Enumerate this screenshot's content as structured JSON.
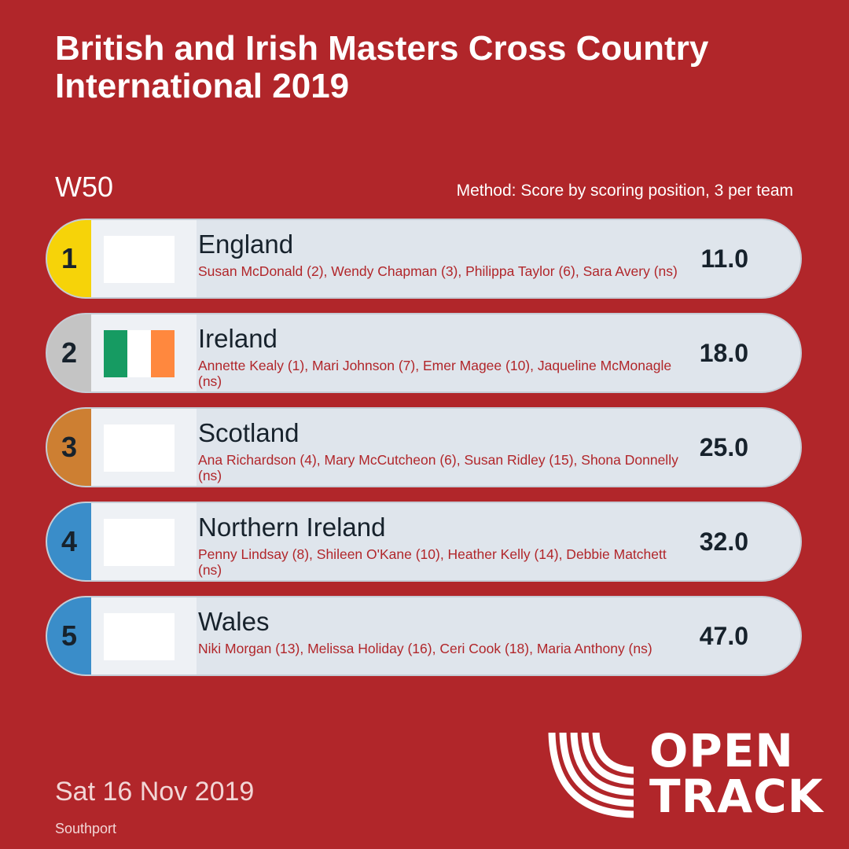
{
  "header": {
    "title": "British and Irish Masters Cross Country International 2019"
  },
  "category": "W50",
  "method": "Method: Score by scoring position, 3 per team",
  "results": [
    {
      "position": "1",
      "team": "England",
      "members": "Susan McDonald (2), Wendy Chapman (3), Philippa Taylor (6), Sara Avery (ns)",
      "score": "11.0",
      "badge_color": "#f6d309",
      "flag": "blank"
    },
    {
      "position": "2",
      "team": "Ireland",
      "members": "Annette Kealy (1), Mari Johnson (7), Emer Magee (10), Jaqueline McMonagle (ns)",
      "score": "18.0",
      "badge_color": "#c4c4c4",
      "flag": "ireland-tricolor",
      "flag_colors": [
        "#169b62",
        "#ffffff",
        "#ff883e"
      ]
    },
    {
      "position": "3",
      "team": "Scotland",
      "members": "Ana Richardson (4), Mary McCutcheon (6), Susan Ridley (15), Shona Donnelly (ns)",
      "score": "25.0",
      "badge_color": "#cd7f32",
      "flag": "blank"
    },
    {
      "position": "4",
      "team": "Northern Ireland",
      "members": "Penny Lindsay (8), Shileen O'Kane (10), Heather Kelly (14), Debbie Matchett (ns)",
      "score": "32.0",
      "badge_color": "#3a8dc9",
      "flag": "blank"
    },
    {
      "position": "5",
      "team": "Wales",
      "members": "Niki Morgan (13), Melissa Holiday (16), Ceri Cook (18), Maria Anthony (ns)",
      "score": "47.0",
      "badge_color": "#3a8dc9",
      "flag": "blank"
    }
  ],
  "footer": {
    "date": "Sat 16 Nov 2019",
    "venue": "Southport"
  },
  "logo": {
    "line1": "OPEN",
    "line2": "TRACK"
  },
  "colors": {
    "background": "#b1262a",
    "card": "#dfe5ec",
    "member_text": "#b1262a"
  }
}
